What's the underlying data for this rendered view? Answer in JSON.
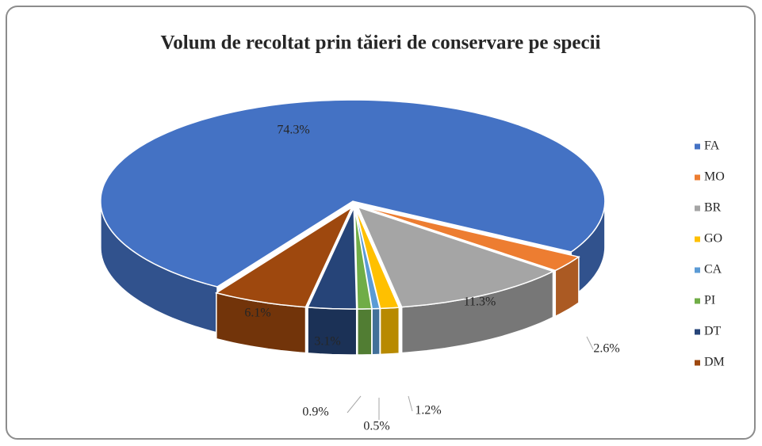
{
  "chart_data": {
    "type": "pie",
    "title": "Volum de recoltat prin tăieri de conservare pe specii",
    "categories": [
      "FA",
      "MO",
      "BR",
      "GO",
      "CA",
      "PI",
      "DT",
      "DM"
    ],
    "values": [
      74.3,
      2.6,
      11.3,
      1.2,
      0.5,
      0.9,
      3.1,
      6.1
    ],
    "value_labels": [
      "74.3%",
      "2.6%",
      "11.3%",
      "1.2%",
      "0.5%",
      "0.9%",
      "3.1%",
      "6.1%"
    ],
    "colors": [
      "#4472c4",
      "#ed7d31",
      "#a5a5a5",
      "#ffc000",
      "#5b9bd5",
      "#70ad47",
      "#264478",
      "#9e480e"
    ],
    "legend": "right"
  }
}
